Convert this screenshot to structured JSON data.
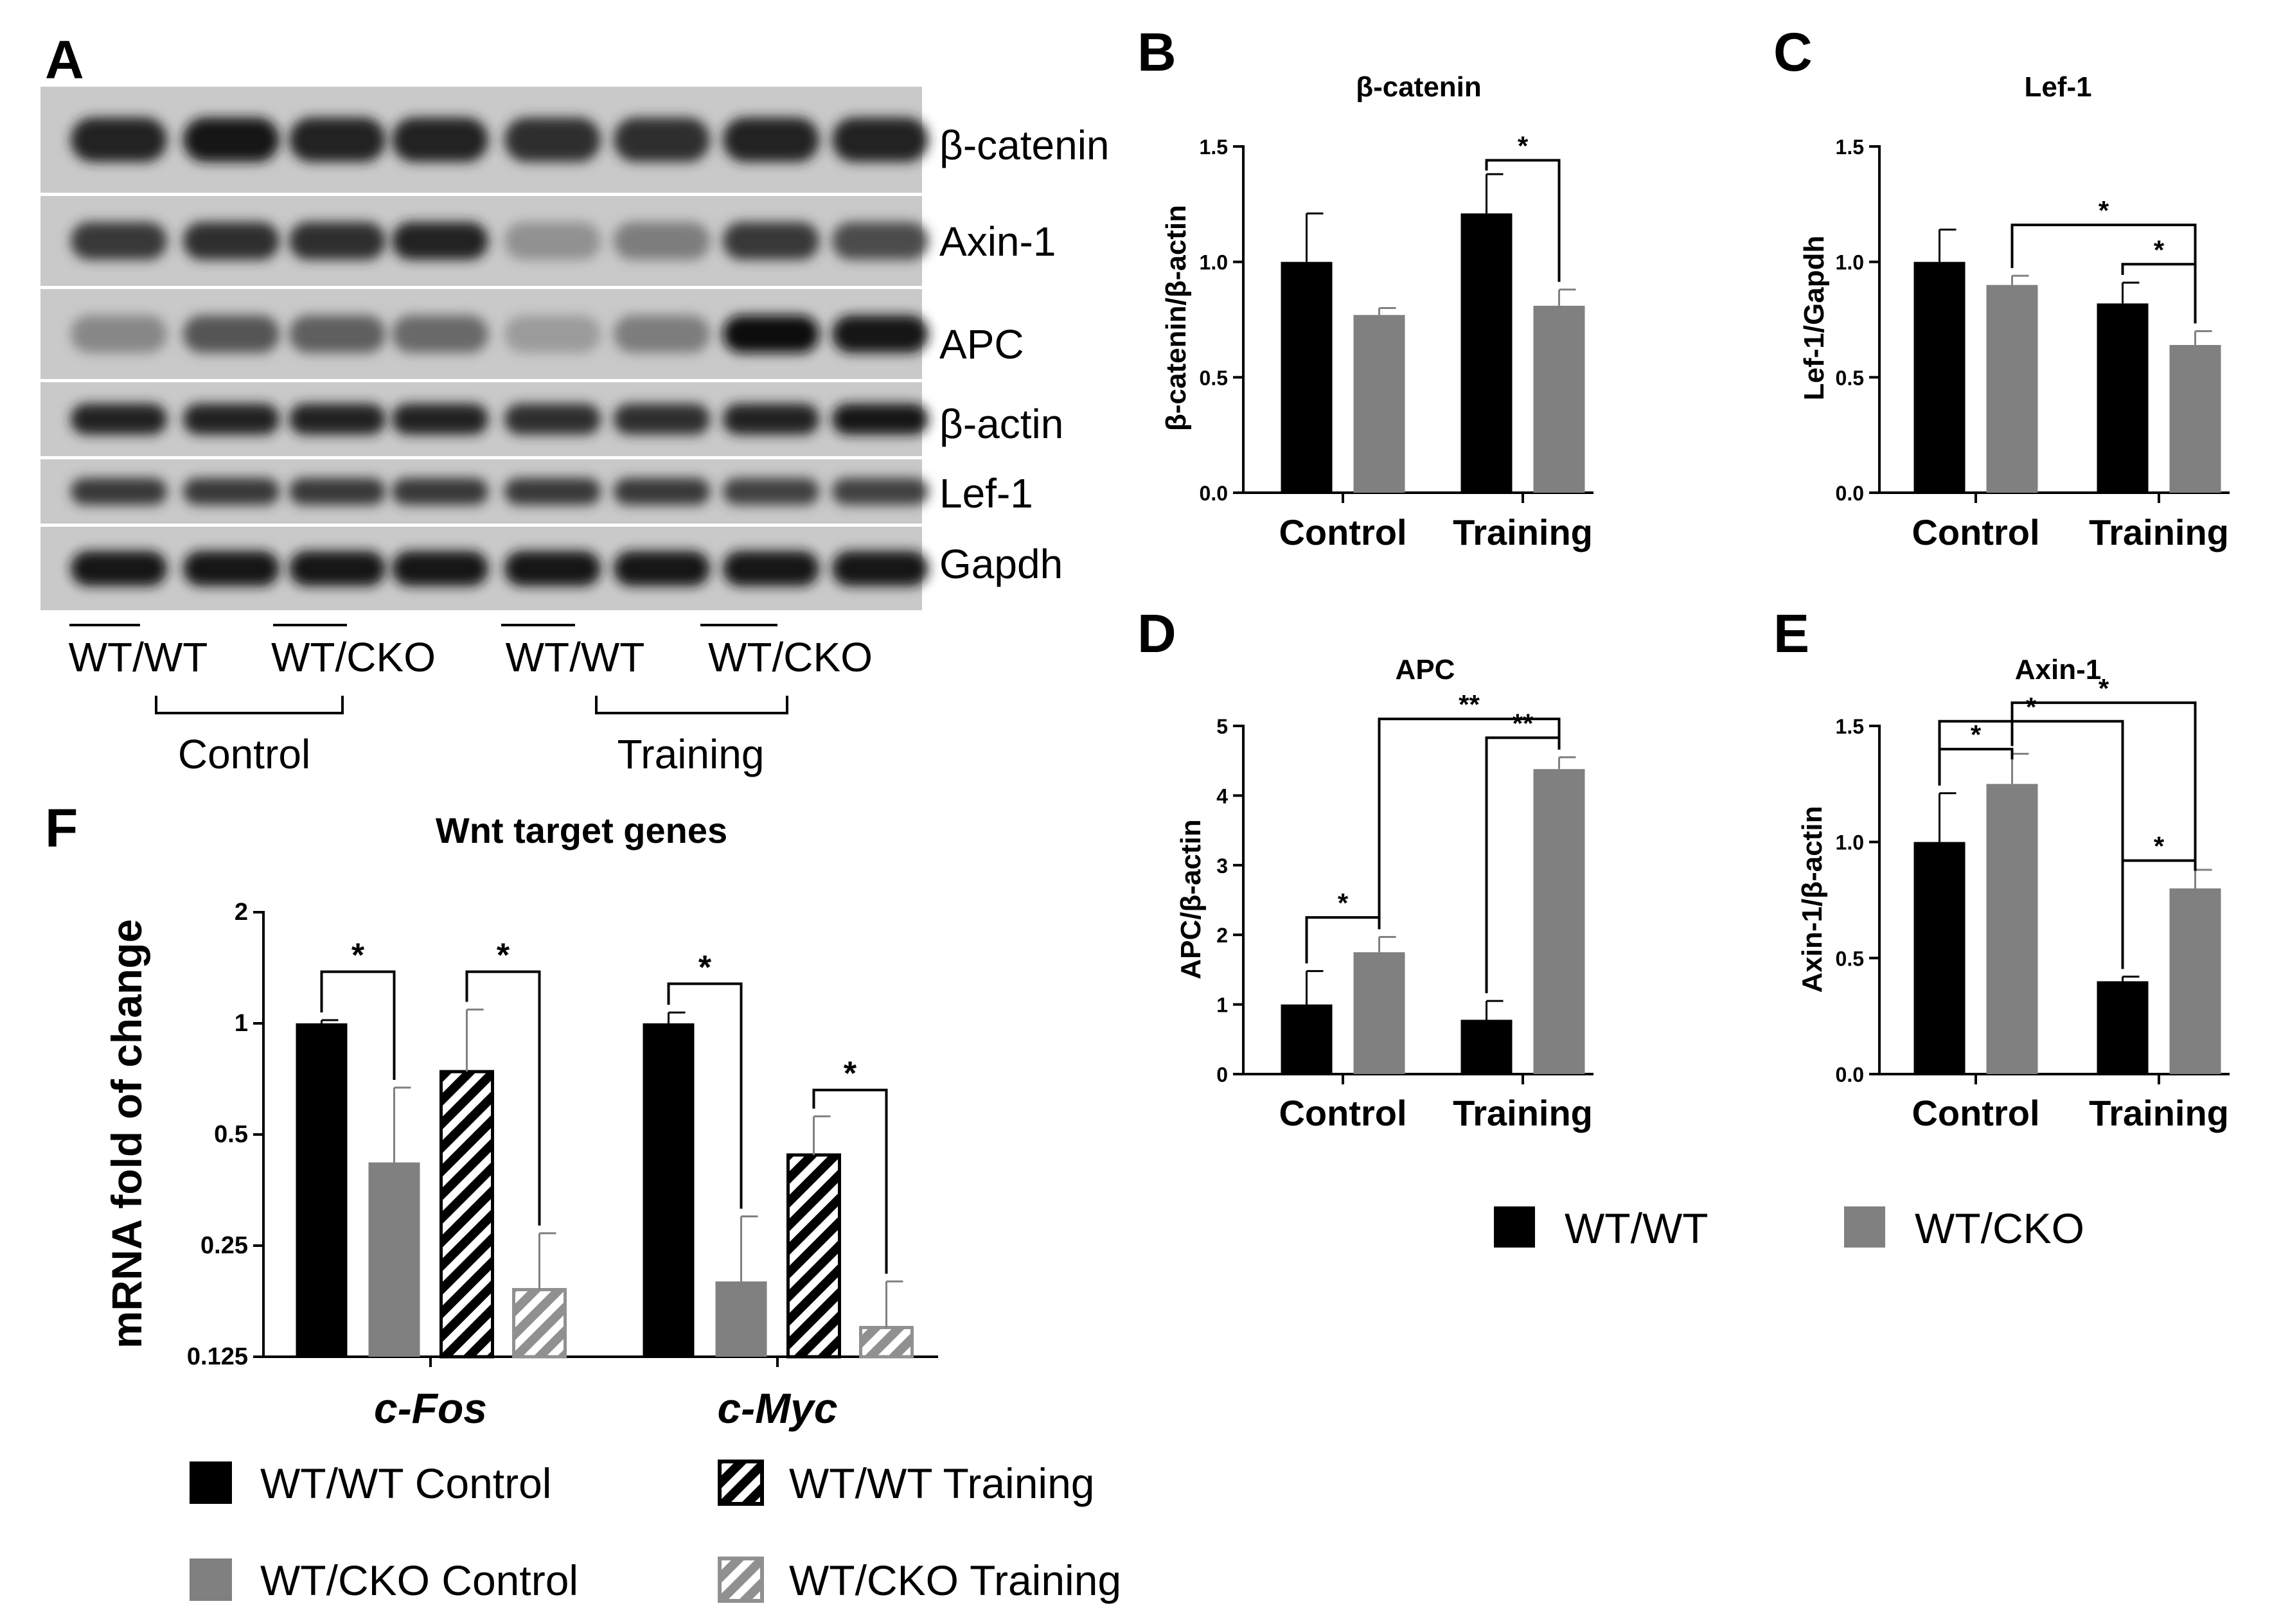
{
  "figure": {
    "colors": {
      "wt_wt": "#000000",
      "wt_cko": "#808080"
    },
    "panel_a": {
      "label": "A",
      "rows": [
        "β-catenin",
        "Axin-1",
        "APC",
        "β-actin",
        "Lef-1",
        "Gapdh"
      ],
      "lane_groups": [
        "WT/WT",
        "WT/CKO",
        "WT/WT",
        "WT/CKO"
      ],
      "conditions": [
        "Control",
        "Training"
      ],
      "band_intensity": [
        [
          0.9,
          0.95,
          0.9,
          0.9,
          0.85,
          0.85,
          0.9,
          0.9
        ],
        [
          0.8,
          0.85,
          0.85,
          0.9,
          0.35,
          0.45,
          0.8,
          0.7
        ],
        [
          0.4,
          0.65,
          0.6,
          0.55,
          0.3,
          0.45,
          1.0,
          0.95
        ],
        [
          0.9,
          0.9,
          0.9,
          0.9,
          0.85,
          0.85,
          0.9,
          0.95
        ],
        [
          0.8,
          0.8,
          0.8,
          0.8,
          0.8,
          0.8,
          0.75,
          0.75
        ],
        [
          0.95,
          0.95,
          0.95,
          0.95,
          0.95,
          0.95,
          0.95,
          0.95
        ]
      ]
    },
    "legend_main": [
      "WT/WT",
      "WT/CKO"
    ],
    "legend_f": [
      "WT/WT Control",
      "WT/WT Training",
      "WT/CKO Control",
      "WT/CKO Training"
    ]
  },
  "chart_data": [
    {
      "panel": "B",
      "type": "bar",
      "title": "β-catenin",
      "ylabel": "β-catenin/β-actin",
      "categories": [
        "Control",
        "Training"
      ],
      "ylim": [
        0,
        1.5
      ],
      "yticks": [
        "0.0",
        "0.5",
        "1.0",
        "1.5"
      ],
      "series": [
        {
          "name": "WT/WT",
          "values": [
            1.0,
            1.21
          ],
          "errors": [
            0.21,
            0.17
          ]
        },
        {
          "name": "WT/CKO",
          "values": [
            0.77,
            0.81
          ],
          "errors": [
            0.03,
            0.07
          ]
        }
      ],
      "significance": [
        {
          "label": "*",
          "from": [
            1,
            0
          ],
          "to": [
            1,
            1
          ],
          "y": 1.44
        }
      ]
    },
    {
      "panel": "C",
      "type": "bar",
      "title": "Lef-1",
      "ylabel": "Lef-1/Gapdh",
      "categories": [
        "Control",
        "Training"
      ],
      "ylim": [
        0,
        1.5
      ],
      "yticks": [
        "0.0",
        "0.5",
        "1.0",
        "1.5"
      ],
      "series": [
        {
          "name": "WT/WT",
          "values": [
            1.0,
            0.82
          ],
          "errors": [
            0.14,
            0.09
          ]
        },
        {
          "name": "WT/CKO",
          "values": [
            0.9,
            0.64
          ],
          "errors": [
            0.04,
            0.06
          ]
        }
      ],
      "significance": [
        {
          "label": "*",
          "from": [
            0,
            1
          ],
          "to": [
            1,
            1
          ],
          "y": 1.16
        },
        {
          "label": "*",
          "from": [
            1,
            0
          ],
          "to": [
            1,
            1
          ],
          "y": 0.99
        }
      ]
    },
    {
      "panel": "D",
      "type": "bar",
      "title": "APC",
      "ylabel": "APC/β-actin",
      "categories": [
        "Control",
        "Training"
      ],
      "ylim": [
        0,
        5
      ],
      "yticks": [
        "0",
        "1",
        "2",
        "3",
        "4",
        "5"
      ],
      "series": [
        {
          "name": "WT/WT",
          "values": [
            1.0,
            0.78
          ],
          "errors": [
            0.48,
            0.27
          ]
        },
        {
          "name": "WT/CKO",
          "values": [
            1.75,
            4.38
          ],
          "errors": [
            0.22,
            0.17
          ]
        }
      ],
      "significance": [
        {
          "label": "*",
          "from": [
            0,
            0
          ],
          "to": [
            0,
            1
          ],
          "y": 2.25
        },
        {
          "label": "**",
          "from": [
            1,
            0
          ],
          "to": [
            1,
            1
          ],
          "y": 4.83
        },
        {
          "label": "**",
          "from": [
            0,
            1
          ],
          "to": [
            1,
            1
          ],
          "y": 5.1
        }
      ]
    },
    {
      "panel": "E",
      "type": "bar",
      "title": "Axin-1",
      "ylabel": "Axin-1/β-actin",
      "categories": [
        "Control",
        "Training"
      ],
      "ylim": [
        0,
        1.5
      ],
      "yticks": [
        "0.0",
        "0.5",
        "1.0",
        "1.5"
      ],
      "series": [
        {
          "name": "WT/WT",
          "values": [
            1.0,
            0.4
          ],
          "errors": [
            0.21,
            0.02
          ]
        },
        {
          "name": "WT/CKO",
          "values": [
            1.25,
            0.8
          ],
          "errors": [
            0.13,
            0.08
          ]
        }
      ],
      "significance": [
        {
          "label": "*",
          "from": [
            0,
            0
          ],
          "to": [
            0,
            1
          ],
          "y": 1.4
        },
        {
          "label": "*",
          "from": [
            0,
            0
          ],
          "to": [
            1,
            0
          ],
          "y": 1.52
        },
        {
          "label": "*",
          "from": [
            0,
            1
          ],
          "to": [
            1,
            1
          ],
          "y": 1.6
        },
        {
          "label": "*",
          "from": [
            1,
            0
          ],
          "to": [
            1,
            1
          ],
          "y": 0.92
        }
      ]
    },
    {
      "panel": "F",
      "type": "bar",
      "title": "Wnt target genes",
      "ylabel": "mRNA fold of change",
      "categories": [
        "c-Fos",
        "c-Myc"
      ],
      "yscale": "log2",
      "ylim": [
        0.125,
        2
      ],
      "yticks": [
        "0.125",
        "0.25",
        "0.5",
        "1",
        "2"
      ],
      "series": [
        {
          "name": "WT/WT Control",
          "values": [
            1.0,
            1.0
          ],
          "errors": [
            0.02,
            0.07
          ]
        },
        {
          "name": "WT/CKO Control",
          "values": [
            0.42,
            0.2
          ],
          "errors": [
            0.25,
            0.1
          ]
        },
        {
          "name": "WT/WT Training",
          "values": [
            0.74,
            0.44
          ],
          "errors": [
            0.35,
            0.12
          ]
        },
        {
          "name": "WT/CKO Training",
          "values": [
            0.19,
            0.15
          ],
          "errors": [
            0.08,
            0.05
          ]
        }
      ],
      "significance": [
        {
          "label": "*",
          "from": [
            0,
            0
          ],
          "to": [
            0,
            1
          ],
          "y": 1.38
        },
        {
          "label": "*",
          "from": [
            0,
            2
          ],
          "to": [
            0,
            3
          ],
          "y": 1.38
        },
        {
          "label": "*",
          "from": [
            1,
            0
          ],
          "to": [
            1,
            1
          ],
          "y": 1.28
        },
        {
          "label": "*",
          "from": [
            1,
            2
          ],
          "to": [
            1,
            3
          ],
          "y": 0.66
        }
      ]
    }
  ]
}
